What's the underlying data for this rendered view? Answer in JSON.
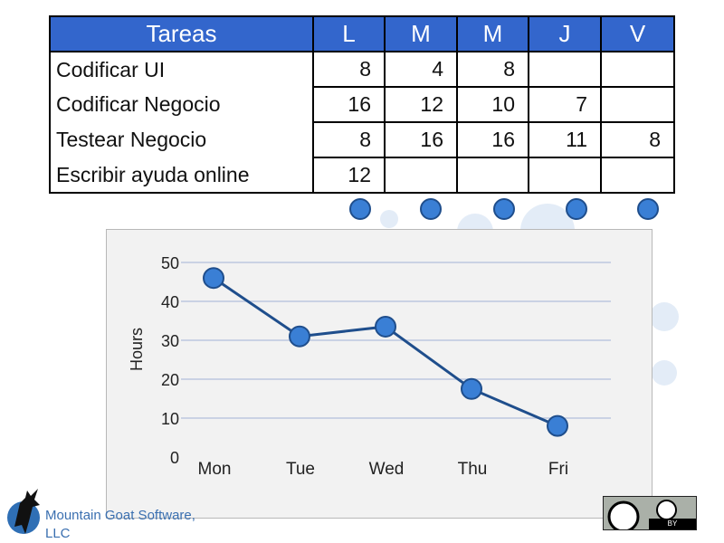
{
  "table": {
    "header_task": "Tareas",
    "day_headers": [
      "L",
      "M",
      "M",
      "J",
      "V"
    ],
    "rows": [
      {
        "task": "Codificar UI",
        "hours": [
          "8",
          "4",
          "8",
          "",
          ""
        ]
      },
      {
        "task": "Codificar Negocio",
        "hours": [
          "16",
          "12",
          "10",
          "7",
          ""
        ]
      },
      {
        "task": "Testear Negocio",
        "hours": [
          "8",
          "16",
          "16",
          "11",
          "8"
        ]
      },
      {
        "task": "Escribir ayuda online",
        "hours": [
          "12",
          "",
          "",
          "",
          ""
        ]
      }
    ]
  },
  "chart_data": {
    "type": "line",
    "categories": [
      "Mon",
      "Tue",
      "Wed",
      "Thu",
      "Fri"
    ],
    "series": [
      {
        "values": [
          46,
          31,
          33.5,
          17.5,
          8
        ]
      }
    ],
    "xlabel": "",
    "ylabel": "Hours",
    "ylim": [
      0,
      50
    ],
    "yticks": [
      "50",
      "40",
      "30",
      "20",
      "10",
      "0"
    ],
    "grid": true,
    "colors": {
      "line": "#1f4e8c",
      "marker": "#3a7fd5",
      "grid": "#bcc8e0"
    }
  },
  "footer": {
    "logo_text_line1": "Mountain Goat Software,",
    "logo_text_line2": "LLC",
    "license_text": "BY",
    "logo_icon": "goat-logo-icon",
    "license_icon": "creative-commons-by-icon"
  }
}
